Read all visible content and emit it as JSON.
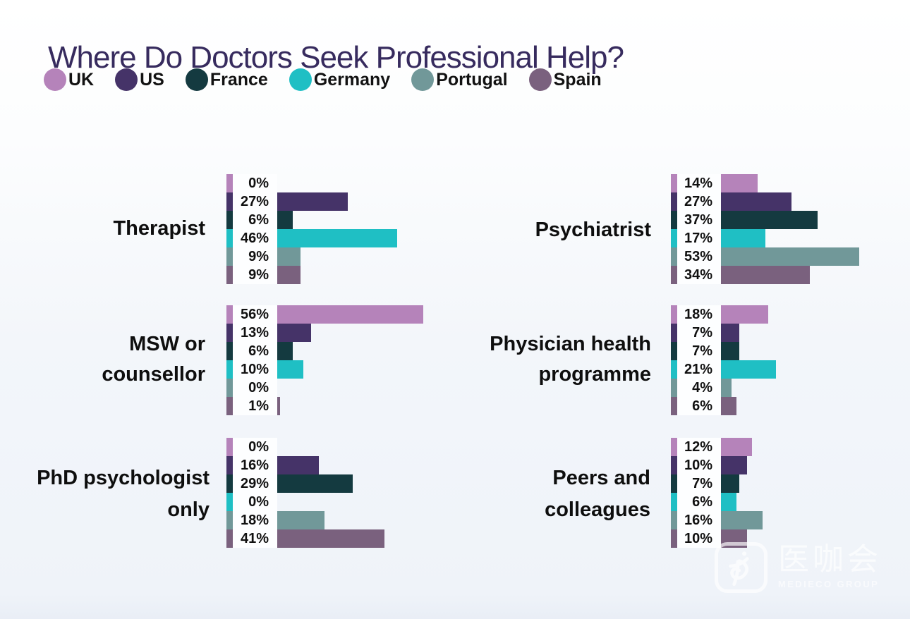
{
  "title": "Where Do Doctors Seek Professional Help?",
  "title_color": "#372b5e",
  "legend": [
    {
      "label": "UK",
      "color": "#b583ba"
    },
    {
      "label": "US",
      "color": "#453368"
    },
    {
      "label": "France",
      "color": "#143a40"
    },
    {
      "label": "Germany",
      "color": "#1fbfc4"
    },
    {
      "label": "Portugal",
      "color": "#719899"
    },
    {
      "label": "Spain",
      "color": "#7a617e"
    }
  ],
  "chart_data": {
    "type": "bar",
    "orientation": "horizontal",
    "title": "Where Do Doctors Seek Professional Help?",
    "unit": "%",
    "value_labels_shown": true,
    "legend_position": "top-left",
    "xlim": [
      0,
      60
    ],
    "series": [
      "UK",
      "US",
      "France",
      "Germany",
      "Portugal",
      "Spain"
    ],
    "colors": [
      "#b583ba",
      "#453368",
      "#143a40",
      "#1fbfc4",
      "#719899",
      "#7a617e"
    ],
    "groups": [
      {
        "category": "Therapist",
        "lines": [
          "Therapist"
        ],
        "values": [
          0,
          27,
          6,
          46,
          9,
          9
        ]
      },
      {
        "category": "Psychiatrist",
        "lines": [
          "Psychiatrist"
        ],
        "values": [
          14,
          27,
          37,
          17,
          53,
          34
        ]
      },
      {
        "category": "MSW or counsellor",
        "lines": [
          "MSW or",
          "counsellor"
        ],
        "values": [
          56,
          13,
          6,
          10,
          0,
          1
        ]
      },
      {
        "category": "Physician health programme",
        "lines": [
          "Physician health",
          "programme"
        ],
        "values": [
          18,
          7,
          7,
          21,
          4,
          6
        ]
      },
      {
        "category": "PhD psychologist only",
        "lines": [
          "PhD psychologist",
          "only"
        ],
        "values": [
          0,
          16,
          29,
          0,
          18,
          41
        ]
      },
      {
        "category": "Peers and colleagues",
        "lines": [
          "Peers and",
          "colleagues"
        ],
        "values": [
          12,
          10,
          7,
          6,
          16,
          10
        ]
      }
    ]
  },
  "watermark": {
    "logo_text": "医咖会",
    "subtext": "MEDIECO GROUP"
  }
}
